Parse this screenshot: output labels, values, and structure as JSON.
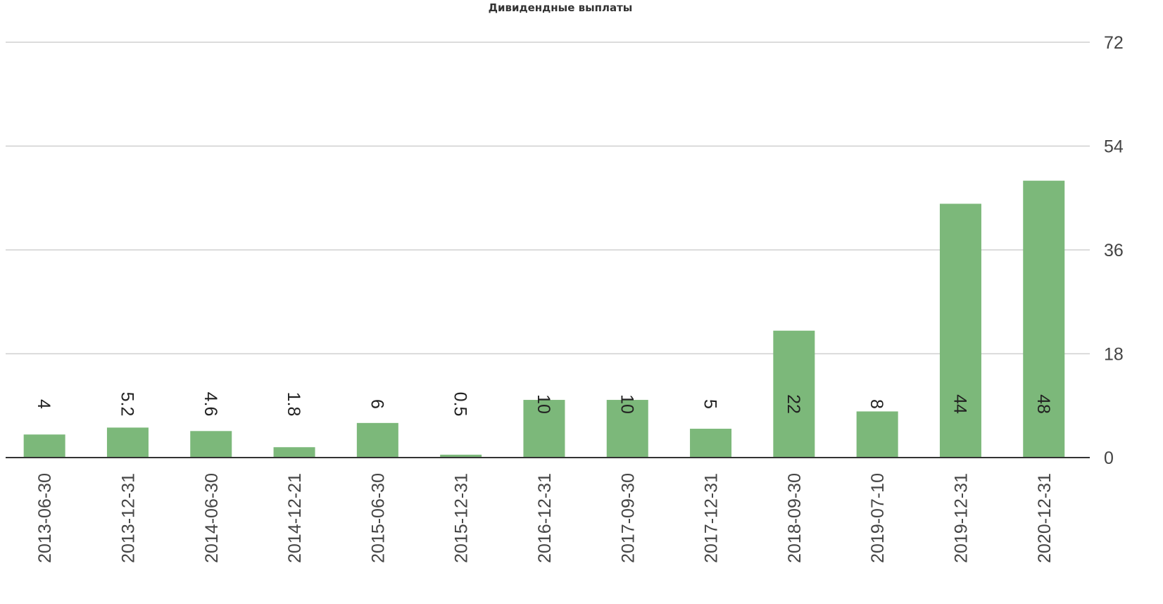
{
  "chart_data": {
    "type": "bar",
    "title": "Дивидендные выплаты",
    "xlabel": "",
    "ylabel": "",
    "categories": [
      "2013-06-30",
      "2013-12-31",
      "2014-06-30",
      "2014-12-21",
      "2015-06-30",
      "2015-12-31",
      "2016-12-31",
      "2017-09-30",
      "2017-12-31",
      "2018-09-30",
      "2019-07-10",
      "2019-12-31",
      "2020-12-31"
    ],
    "values": [
      4,
      5.2,
      4.6,
      1.8,
      6,
      0.5,
      10,
      10,
      5,
      22,
      8,
      44,
      48
    ],
    "value_labels": [
      "4",
      "5.2",
      "4.6",
      "1.8",
      "6",
      "0.5",
      "10",
      "10",
      "5",
      "22",
      "8",
      "44",
      "48"
    ],
    "ylim": [
      0,
      72
    ],
    "yticks": [
      0,
      18,
      36,
      54,
      72
    ],
    "ytick_labels": [
      "0",
      "18",
      "36",
      "54",
      "72"
    ],
    "y_axis_side": "right",
    "grid": true,
    "legend": "none",
    "bar_color": "#7cb87a",
    "grid_color": "#d0d0d0",
    "axis_color": "#333333"
  }
}
